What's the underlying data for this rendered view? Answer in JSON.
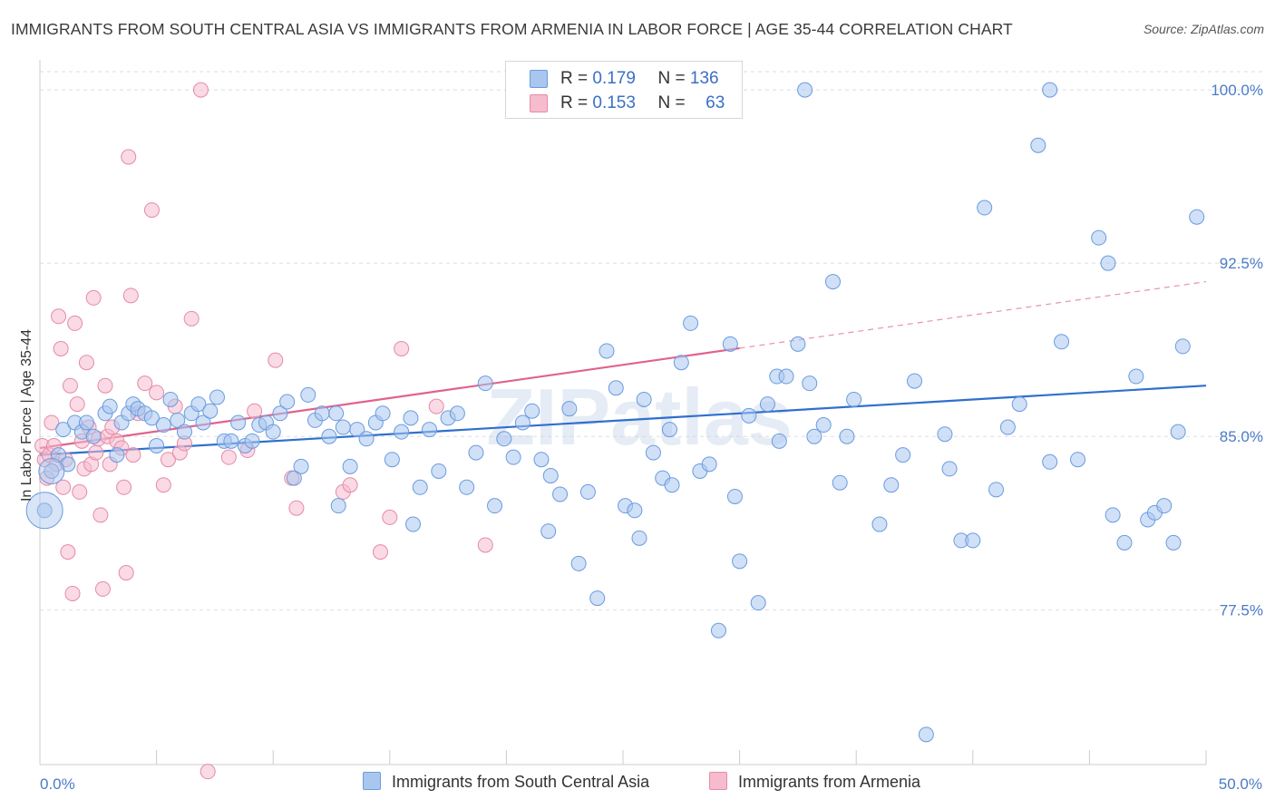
{
  "header": {
    "title": "IMMIGRANTS FROM SOUTH CENTRAL ASIA VS IMMIGRANTS FROM ARMENIA IN LABOR FORCE | AGE 35-44 CORRELATION CHART",
    "source": "Source: ZipAtlas.com"
  },
  "legend": {
    "row1": {
      "r_label": "R =",
      "r_value": "0.179",
      "n_label": "N =",
      "n_value": "136"
    },
    "row2": {
      "r_label": "R =",
      "r_value": "0.153",
      "n_label": "N =",
      "n_value": "63"
    }
  },
  "bottom_legend": {
    "series1": "Immigrants from South Central Asia",
    "series2": "Immigrants from Armenia"
  },
  "watermark": "ZIPatlas",
  "colors": {
    "blue_fill": "#a9c6ee",
    "blue_stroke": "#6a9be0",
    "blue_line": "#2f6fcf",
    "pink_fill": "#f6bcce",
    "pink_stroke": "#e58aa8",
    "pink_line": "#e0628d",
    "axis_text": "#4a7bc8",
    "grid": "#dddddd"
  },
  "chart_data": {
    "type": "scatter",
    "title": "IMMIGRANTS FROM SOUTH CENTRAL ASIA VS IMMIGRANTS FROM ARMENIA IN LABOR FORCE | AGE 35-44 CORRELATION CHART",
    "xlabel": "",
    "ylabel": "In Labor Force | Age 35-44",
    "xlim": [
      0,
      50
    ],
    "ylim": [
      70.8,
      101.3
    ],
    "x_tick_labels": [
      "0.0%",
      "50.0%"
    ],
    "y_ticks": [
      77.5,
      85.0,
      92.5,
      100.0
    ],
    "y_tick_labels": [
      "77.5%",
      "85.0%",
      "92.5%",
      "100.0%"
    ],
    "grid": true,
    "legend_position": "top-center",
    "series": [
      {
        "name": "Immigrants from South Central Asia",
        "color": "#6a9be0",
        "r": 0.179,
        "n": 136,
        "trend": {
          "x0": 0,
          "y0": 84.2,
          "x1": 50,
          "y1": 87.2
        },
        "points": [
          [
            0.2,
            81.8
          ],
          [
            0.5,
            83.5
          ],
          [
            0.8,
            84.2
          ],
          [
            1.0,
            85.3
          ],
          [
            1.2,
            83.8
          ],
          [
            1.5,
            85.6
          ],
          [
            1.8,
            85.2
          ],
          [
            2.0,
            85.6
          ],
          [
            2.3,
            85.0
          ],
          [
            2.8,
            86.0
          ],
          [
            3.0,
            86.3
          ],
          [
            3.3,
            84.2
          ],
          [
            3.5,
            85.6
          ],
          [
            3.8,
            86.0
          ],
          [
            4.0,
            86.4
          ],
          [
            4.2,
            86.2
          ],
          [
            4.5,
            86.0
          ],
          [
            4.8,
            85.8
          ],
          [
            5.0,
            84.6
          ],
          [
            5.3,
            85.5
          ],
          [
            5.6,
            86.6
          ],
          [
            5.9,
            85.7
          ],
          [
            6.2,
            85.2
          ],
          [
            6.5,
            86.0
          ],
          [
            6.8,
            86.4
          ],
          [
            7.0,
            85.6
          ],
          [
            7.3,
            86.1
          ],
          [
            7.6,
            86.7
          ],
          [
            7.9,
            84.8
          ],
          [
            8.2,
            84.8
          ],
          [
            8.5,
            85.6
          ],
          [
            8.8,
            84.6
          ],
          [
            9.1,
            84.8
          ],
          [
            9.4,
            85.5
          ],
          [
            9.7,
            85.6
          ],
          [
            10.0,
            85.2
          ],
          [
            10.3,
            86.0
          ],
          [
            10.6,
            86.5
          ],
          [
            10.9,
            83.2
          ],
          [
            11.2,
            83.7
          ],
          [
            11.5,
            86.8
          ],
          [
            11.8,
            85.7
          ],
          [
            12.1,
            86.0
          ],
          [
            12.4,
            85.0
          ],
          [
            12.7,
            86.0
          ],
          [
            13.0,
            85.4
          ],
          [
            13.3,
            83.7
          ],
          [
            13.6,
            85.3
          ],
          [
            14.0,
            84.9
          ],
          [
            14.4,
            85.6
          ],
          [
            14.7,
            86.0
          ],
          [
            15.1,
            84.0
          ],
          [
            15.5,
            85.2
          ],
          [
            15.9,
            85.8
          ],
          [
            16.3,
            82.8
          ],
          [
            16.7,
            85.3
          ],
          [
            17.1,
            83.5
          ],
          [
            17.5,
            85.8
          ],
          [
            17.9,
            86.0
          ],
          [
            18.3,
            82.8
          ],
          [
            18.7,
            84.3
          ],
          [
            19.1,
            87.3
          ],
          [
            19.5,
            82.0
          ],
          [
            19.9,
            84.9
          ],
          [
            20.3,
            84.1
          ],
          [
            20.7,
            85.6
          ],
          [
            21.1,
            86.1
          ],
          [
            21.5,
            84.0
          ],
          [
            21.9,
            83.3
          ],
          [
            22.3,
            82.5
          ],
          [
            22.7,
            86.2
          ],
          [
            23.1,
            79.5
          ],
          [
            23.5,
            82.6
          ],
          [
            23.9,
            78.0
          ],
          [
            24.3,
            88.7
          ],
          [
            24.7,
            87.1
          ],
          [
            25.1,
            82.0
          ],
          [
            25.5,
            81.8
          ],
          [
            25.9,
            86.6
          ],
          [
            26.3,
            84.3
          ],
          [
            26.7,
            83.2
          ],
          [
            27.1,
            82.9
          ],
          [
            27.5,
            88.2
          ],
          [
            27.9,
            89.9
          ],
          [
            28.3,
            83.5
          ],
          [
            28.7,
            83.8
          ],
          [
            29.1,
            76.6
          ],
          [
            29.6,
            89.0
          ],
          [
            30.0,
            79.6
          ],
          [
            30.4,
            85.9
          ],
          [
            30.8,
            77.8
          ],
          [
            31.2,
            86.4
          ],
          [
            31.6,
            87.6
          ],
          [
            32.0,
            87.6
          ],
          [
            32.5,
            89.0
          ],
          [
            33.0,
            87.3
          ],
          [
            33.2,
            85.0
          ],
          [
            33.6,
            85.5
          ],
          [
            34.0,
            91.7
          ],
          [
            34.6,
            85.0
          ],
          [
            34.9,
            86.6
          ],
          [
            36.0,
            81.2
          ],
          [
            37.0,
            84.2
          ],
          [
            38.0,
            72.1
          ],
          [
            38.8,
            85.1
          ],
          [
            39.5,
            80.5
          ],
          [
            40.0,
            80.5
          ],
          [
            40.5,
            94.9
          ],
          [
            41.5,
            85.4
          ],
          [
            43.3,
            83.9
          ],
          [
            43.8,
            89.1
          ],
          [
            45.4,
            93.6
          ],
          [
            45.8,
            92.5
          ],
          [
            46.0,
            81.6
          ],
          [
            46.5,
            80.4
          ],
          [
            47.5,
            81.4
          ],
          [
            47.8,
            81.7
          ],
          [
            48.2,
            82.0
          ],
          [
            48.6,
            80.4
          ],
          [
            48.8,
            85.2
          ],
          [
            49.0,
            88.9
          ],
          [
            49.6,
            94.5
          ],
          [
            32.8,
            100.0
          ],
          [
            43.3,
            100.0
          ],
          [
            42.8,
            97.6
          ],
          [
            36.5,
            82.9
          ],
          [
            37.5,
            87.4
          ],
          [
            39.0,
            83.6
          ],
          [
            41.0,
            82.7
          ],
          [
            42.0,
            86.4
          ],
          [
            44.5,
            84.0
          ],
          [
            47.0,
            87.6
          ],
          [
            34.3,
            83.0
          ],
          [
            31.7,
            84.8
          ],
          [
            29.8,
            82.4
          ],
          [
            27.0,
            85.3
          ],
          [
            25.7,
            80.6
          ],
          [
            21.8,
            80.9
          ],
          [
            16.0,
            81.2
          ],
          [
            12.8,
            82.0
          ]
        ]
      },
      {
        "name": "Immigrants from Armenia",
        "color": "#e58aa8",
        "r": 0.153,
        "n": 63,
        "trend": {
          "x0": 0,
          "y0": 84.5,
          "x1": 50,
          "y1": 91.7
        },
        "points": [
          [
            0.1,
            84.6
          ],
          [
            0.2,
            84.0
          ],
          [
            0.3,
            83.2
          ],
          [
            0.4,
            84.2
          ],
          [
            0.5,
            85.6
          ],
          [
            0.6,
            84.6
          ],
          [
            0.7,
            83.8
          ],
          [
            0.8,
            90.2
          ],
          [
            0.9,
            88.8
          ],
          [
            1.0,
            82.8
          ],
          [
            1.1,
            84.0
          ],
          [
            1.2,
            80.0
          ],
          [
            1.3,
            87.2
          ],
          [
            1.4,
            78.2
          ],
          [
            1.5,
            89.9
          ],
          [
            1.6,
            86.4
          ],
          [
            1.7,
            82.6
          ],
          [
            1.8,
            84.8
          ],
          [
            1.9,
            83.6
          ],
          [
            2.0,
            88.2
          ],
          [
            2.1,
            85.4
          ],
          [
            2.2,
            83.8
          ],
          [
            2.3,
            91.0
          ],
          [
            2.4,
            84.3
          ],
          [
            2.5,
            84.9
          ],
          [
            2.6,
            81.6
          ],
          [
            2.7,
            78.4
          ],
          [
            2.8,
            87.2
          ],
          [
            2.9,
            85.0
          ],
          [
            3.0,
            83.8
          ],
          [
            3.1,
            85.4
          ],
          [
            3.3,
            84.8
          ],
          [
            3.5,
            84.5
          ],
          [
            3.6,
            82.8
          ],
          [
            3.7,
            79.1
          ],
          [
            3.8,
            97.1
          ],
          [
            3.9,
            91.1
          ],
          [
            4.0,
            84.2
          ],
          [
            4.2,
            86.0
          ],
          [
            4.5,
            87.3
          ],
          [
            4.8,
            94.8
          ],
          [
            5.0,
            86.9
          ],
          [
            5.3,
            82.9
          ],
          [
            5.5,
            84.0
          ],
          [
            5.8,
            86.3
          ],
          [
            6.0,
            84.3
          ],
          [
            6.2,
            84.7
          ],
          [
            6.5,
            90.1
          ],
          [
            6.9,
            100.0
          ],
          [
            7.2,
            70.5
          ],
          [
            8.1,
            84.1
          ],
          [
            8.9,
            84.4
          ],
          [
            9.2,
            86.1
          ],
          [
            10.1,
            88.3
          ],
          [
            10.8,
            83.2
          ],
          [
            11.0,
            81.9
          ],
          [
            13.0,
            82.6
          ],
          [
            13.3,
            82.9
          ],
          [
            14.6,
            80.0
          ],
          [
            15.0,
            81.5
          ],
          [
            15.5,
            88.8
          ],
          [
            17.0,
            86.3
          ],
          [
            19.1,
            80.3
          ]
        ]
      }
    ]
  }
}
